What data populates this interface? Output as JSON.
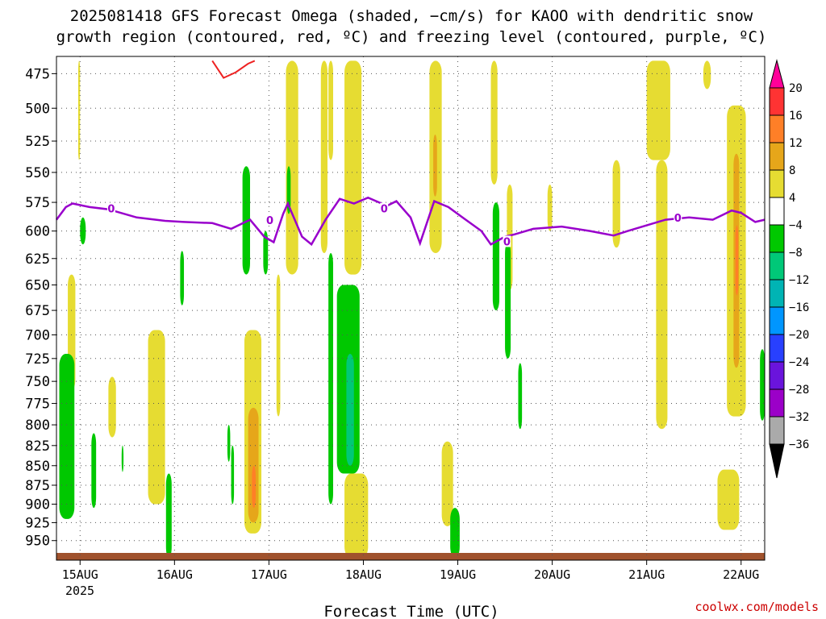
{
  "title_line1": "2025081418 GFS Forecast Omega (shaded, −cm/s) for KAOO with dendritic snow",
  "title_line2": "growth region (contoured, red, ºC) and freezing level (contoured, purple, ºC)",
  "x_axis_title": "Forecast Time (UTC)",
  "watermark": "coolwx.com/models",
  "watermark_color": "#cc0000",
  "chart_data": {
    "type": "heatmap",
    "y_ticks": [
      "475",
      "500",
      "525",
      "550",
      "575",
      "600",
      "625",
      "650",
      "675",
      "700",
      "725",
      "750",
      "775",
      "800",
      "825",
      "850",
      "875",
      "900",
      "925",
      "950"
    ],
    "y_range_hpa": [
      463,
      978
    ],
    "y_scale": "log-pressure (inverted)",
    "x_ticks": [
      "15AUG",
      "16AUG",
      "17AUG",
      "18AUG",
      "19AUG",
      "20AUG",
      "21AUG",
      "22AUG"
    ],
    "x_tick_year": "2025",
    "x_range_days": [
      14.75,
      22.25
    ],
    "grid": true,
    "colorbar": {
      "labels": [
        "20",
        "16",
        "12",
        "8",
        "4",
        "−4",
        "−8",
        "−12",
        "−16",
        "−20",
        "−24",
        "−28",
        "−32",
        "−36"
      ],
      "colors": [
        "#ff0099",
        "#ff3333",
        "#ff7f27",
        "#e6a61a",
        "#e6dc32",
        "#ffffff",
        "#00c800",
        "#00c878",
        "#00b4b4",
        "#0096ff",
        "#2840ff",
        "#6a14dc",
        "#9b00c8",
        "#aaaaaa",
        "#000000"
      ]
    },
    "freezing_level": {
      "color": "#9900cc",
      "label": "0",
      "points": [
        [
          14.75,
          590
        ],
        [
          14.85,
          579
        ],
        [
          14.92,
          576
        ],
        [
          15.1,
          579
        ],
        [
          15.3,
          581
        ],
        [
          15.6,
          588
        ],
        [
          15.9,
          591
        ],
        [
          16.1,
          592
        ],
        [
          16.4,
          593
        ],
        [
          16.6,
          598
        ],
        [
          16.8,
          590
        ],
        [
          16.95,
          605
        ],
        [
          17.05,
          610
        ],
        [
          17.15,
          585
        ],
        [
          17.2,
          576
        ],
        [
          17.35,
          605
        ],
        [
          17.45,
          612
        ],
        [
          17.6,
          590
        ],
        [
          17.75,
          572
        ],
        [
          17.9,
          576
        ],
        [
          18.05,
          571
        ],
        [
          18.25,
          578
        ],
        [
          18.35,
          574
        ],
        [
          18.5,
          588
        ],
        [
          18.6,
          611
        ],
        [
          18.75,
          574
        ],
        [
          18.9,
          579
        ],
        [
          19.05,
          588
        ],
        [
          19.25,
          600
        ],
        [
          19.35,
          612
        ],
        [
          19.5,
          605
        ],
        [
          19.6,
          603
        ],
        [
          19.8,
          598
        ],
        [
          20.1,
          596
        ],
        [
          20.4,
          600
        ],
        [
          20.65,
          604
        ],
        [
          20.8,
          600
        ],
        [
          21.0,
          595
        ],
        [
          21.2,
          590
        ],
        [
          21.45,
          588
        ],
        [
          21.7,
          590
        ],
        [
          21.9,
          582
        ],
        [
          22.0,
          584
        ],
        [
          22.15,
          592
        ],
        [
          22.25,
          590
        ]
      ],
      "label_at": [
        [
          15.33,
          581
        ],
        [
          17.01,
          591
        ],
        [
          18.22,
          581
        ],
        [
          19.52,
          610
        ],
        [
          21.33,
          589
        ]
      ]
    },
    "dgz_contour": {
      "color": "#ee2222",
      "points": [
        [
          16.4,
          466
        ],
        [
          16.52,
          478
        ],
        [
          16.65,
          474
        ],
        [
          16.78,
          468
        ],
        [
          16.85,
          466
        ]
      ]
    },
    "omega_regions": [
      {
        "value": 4,
        "color": "#e6dc32",
        "t": [
          14.98,
          15.0
        ],
        "p": [
          466,
          540
        ]
      },
      {
        "value": 4,
        "color": "#e6dc32",
        "t": [
          14.87,
          14.95
        ],
        "p": [
          640,
          760
        ]
      },
      {
        "value": 4,
        "color": "#e6dc32",
        "t": [
          15.3,
          15.38
        ],
        "p": [
          745,
          815
        ]
      },
      {
        "value": 4,
        "color": "#e6dc32",
        "t": [
          15.72,
          15.9
        ],
        "p": [
          695,
          900
        ]
      },
      {
        "value": 4,
        "color": "#e6dc32",
        "t": [
          16.74,
          16.92
        ],
        "p": [
          695,
          940
        ]
      },
      {
        "value": 8,
        "color": "#e6a61a",
        "t": [
          16.78,
          16.89
        ],
        "p": [
          780,
          925
        ]
      },
      {
        "value": 12,
        "color": "#ff7f27",
        "t": [
          16.82,
          16.86
        ],
        "p": [
          850,
          905
        ]
      },
      {
        "value": 4,
        "color": "#e6dc32",
        "t": [
          17.08,
          17.12
        ],
        "p": [
          640,
          790
        ]
      },
      {
        "value": 4,
        "color": "#e6dc32",
        "t": [
          17.18,
          17.31
        ],
        "p": [
          466,
          640
        ]
      },
      {
        "value": 4,
        "color": "#e6dc32",
        "t": [
          17.55,
          17.62
        ],
        "p": [
          466,
          620
        ]
      },
      {
        "value": 4,
        "color": "#e6dc32",
        "t": [
          17.63,
          17.68
        ],
        "p": [
          466,
          540
        ]
      },
      {
        "value": 4,
        "color": "#e6dc32",
        "t": [
          17.8,
          17.98
        ],
        "p": [
          466,
          640
        ]
      },
      {
        "value": 4,
        "color": "#e6dc32",
        "t": [
          17.8,
          18.05
        ],
        "p": [
          860,
          975
        ]
      },
      {
        "value": 4,
        "color": "#e6dc32",
        "t": [
          18.7,
          18.83
        ],
        "p": [
          466,
          620
        ]
      },
      {
        "value": 8,
        "color": "#e6a61a",
        "t": [
          18.74,
          18.78
        ],
        "p": [
          520,
          570
        ]
      },
      {
        "value": 4,
        "color": "#e6dc32",
        "t": [
          18.83,
          18.95
        ],
        "p": [
          820,
          930
        ]
      },
      {
        "value": 4,
        "color": "#e6dc32",
        "t": [
          19.35,
          19.42
        ],
        "p": [
          466,
          560
        ]
      },
      {
        "value": 4,
        "color": "#e6dc32",
        "t": [
          19.52,
          19.58
        ],
        "p": [
          560,
          655
        ]
      },
      {
        "value": 4,
        "color": "#e6dc32",
        "t": [
          19.95,
          20.0
        ],
        "p": [
          560,
          600
        ]
      },
      {
        "value": 4,
        "color": "#e6dc32",
        "t": [
          20.64,
          20.72
        ],
        "p": [
          540,
          615
        ]
      },
      {
        "value": 4,
        "color": "#e6dc32",
        "t": [
          21.0,
          21.25
        ],
        "p": [
          466,
          540
        ]
      },
      {
        "value": 4,
        "color": "#e6dc32",
        "t": [
          21.1,
          21.22
        ],
        "p": [
          540,
          805
        ]
      },
      {
        "value": 4,
        "color": "#e6dc32",
        "t": [
          21.6,
          21.68
        ],
        "p": [
          466,
          486
        ]
      },
      {
        "value": 4,
        "color": "#e6dc32",
        "t": [
          21.85,
          22.05
        ],
        "p": [
          498,
          790
        ]
      },
      {
        "value": 8,
        "color": "#e6a61a",
        "t": [
          21.92,
          21.98
        ],
        "p": [
          535,
          735
        ]
      },
      {
        "value": 12,
        "color": "#ff7f27",
        "t": [
          21.94,
          21.97
        ],
        "p": [
          595,
          660
        ]
      },
      {
        "value": 4,
        "color": "#e6dc32",
        "t": [
          21.75,
          21.98
        ],
        "p": [
          855,
          935
        ]
      },
      {
        "value": -4,
        "color": "#00c800",
        "t": [
          14.78,
          14.94
        ],
        "p": [
          720,
          920
        ]
      },
      {
        "value": -4,
        "color": "#00c800",
        "t": [
          15.0,
          15.06
        ],
        "p": [
          588,
          612
        ]
      },
      {
        "value": -4,
        "color": "#00c800",
        "t": [
          15.12,
          15.17
        ],
        "p": [
          810,
          905
        ]
      },
      {
        "value": -4,
        "color": "#00c800",
        "t": [
          15.44,
          15.46
        ],
        "p": [
          825,
          858
        ]
      },
      {
        "value": -4,
        "color": "#00c800",
        "t": [
          16.06,
          16.1
        ],
        "p": [
          618,
          670
        ]
      },
      {
        "value": -4,
        "color": "#00c800",
        "t": [
          15.91,
          15.97
        ],
        "p": [
          860,
          975
        ]
      },
      {
        "value": -4,
        "color": "#00c800",
        "t": [
          16.6,
          16.63
        ],
        "p": [
          825,
          900
        ]
      },
      {
        "value": -4,
        "color": "#00c800",
        "t": [
          16.56,
          16.59
        ],
        "p": [
          800,
          845
        ]
      },
      {
        "value": -4,
        "color": "#00c800",
        "t": [
          16.72,
          16.8
        ],
        "p": [
          545,
          640
        ]
      },
      {
        "value": -4,
        "color": "#00c800",
        "t": [
          16.94,
          16.99
        ],
        "p": [
          600,
          640
        ]
      },
      {
        "value": -4,
        "color": "#00c800",
        "t": [
          17.19,
          17.23
        ],
        "p": [
          545,
          585
        ]
      },
      {
        "value": -4,
        "color": "#00c800",
        "t": [
          17.63,
          17.68
        ],
        "p": [
          620,
          900
        ]
      },
      {
        "value": -4,
        "color": "#00c800",
        "t": [
          17.72,
          17.96
        ],
        "p": [
          650,
          860
        ]
      },
      {
        "value": -8,
        "color": "#00c878",
        "t": [
          17.82,
          17.9
        ],
        "p": [
          720,
          850
        ]
      },
      {
        "value": -4,
        "color": "#00c800",
        "t": [
          18.92,
          19.02
        ],
        "p": [
          905,
          975
        ]
      },
      {
        "value": -4,
        "color": "#00c800",
        "t": [
          19.37,
          19.44
        ],
        "p": [
          575,
          675
        ]
      },
      {
        "value": -4,
        "color": "#00c800",
        "t": [
          19.5,
          19.56
        ],
        "p": [
          610,
          725
        ]
      },
      {
        "value": -4,
        "color": "#00c800",
        "t": [
          19.64,
          19.68
        ],
        "p": [
          730,
          805
        ]
      },
      {
        "value": -4,
        "color": "#00c800",
        "t": [
          22.2,
          22.25
        ],
        "p": [
          715,
          795
        ]
      }
    ],
    "ground": {
      "color": "#a0522d",
      "bottom_hpa": 978
    }
  }
}
